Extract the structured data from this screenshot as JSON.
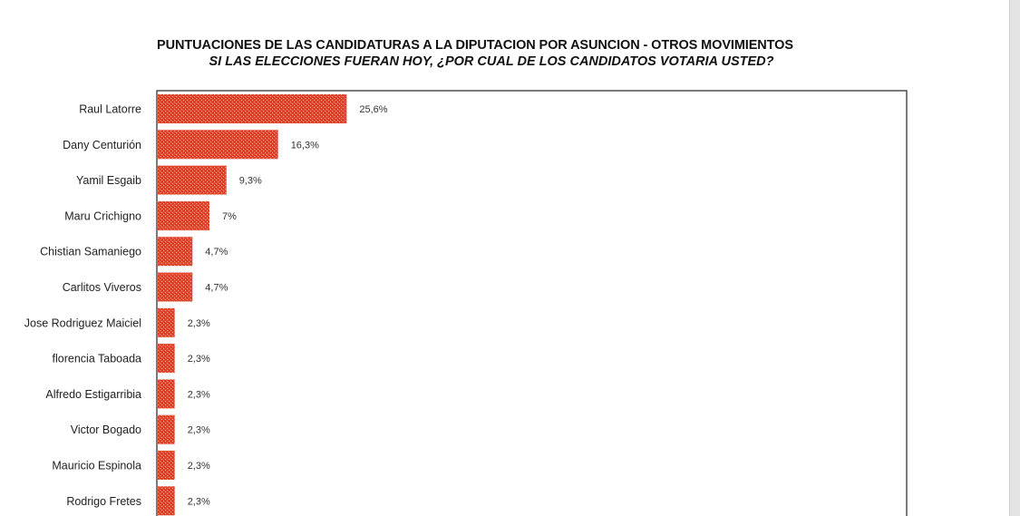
{
  "chart_data": {
    "type": "bar",
    "orientation": "horizontal",
    "title": "PUNTUACIONES DE LAS CANDIDATURAS A LA DIPUTACION POR ASUNCION  -  OTROS MOVIMIENTOS",
    "subtitle": "SI LAS ELECCIONES FUERAN HOY, ¿POR CUAL DE LOS CANDIDATOS VOTARIA USTED?",
    "categories": [
      "Raul Latorre",
      "Dany Centurión",
      "Yamil Esgaib",
      "Maru Crichigno",
      "Chistian Samaniego",
      "Carlitos Viveros",
      "Jose Rodriguez Maiciel",
      "florencia Taboada",
      "Alfredo Estigarribia",
      "Victor Bogado",
      "Mauricio Espinola",
      "Rodrigo Fretes"
    ],
    "values": [
      25.6,
      16.3,
      9.3,
      7,
      4.7,
      4.7,
      2.3,
      2.3,
      2.3,
      2.3,
      2.3,
      2.3
    ],
    "data_labels": [
      "25,6%",
      "16,3%",
      "9,3%",
      "7%",
      "4,7%",
      "4,7%",
      "2,3%",
      "2,3%",
      "2,3%",
      "2,3%",
      "2,3%",
      "2,3%"
    ],
    "xlim": [
      0,
      100
    ],
    "grid": false,
    "bar_color": "#e8442e",
    "legend": "none"
  }
}
